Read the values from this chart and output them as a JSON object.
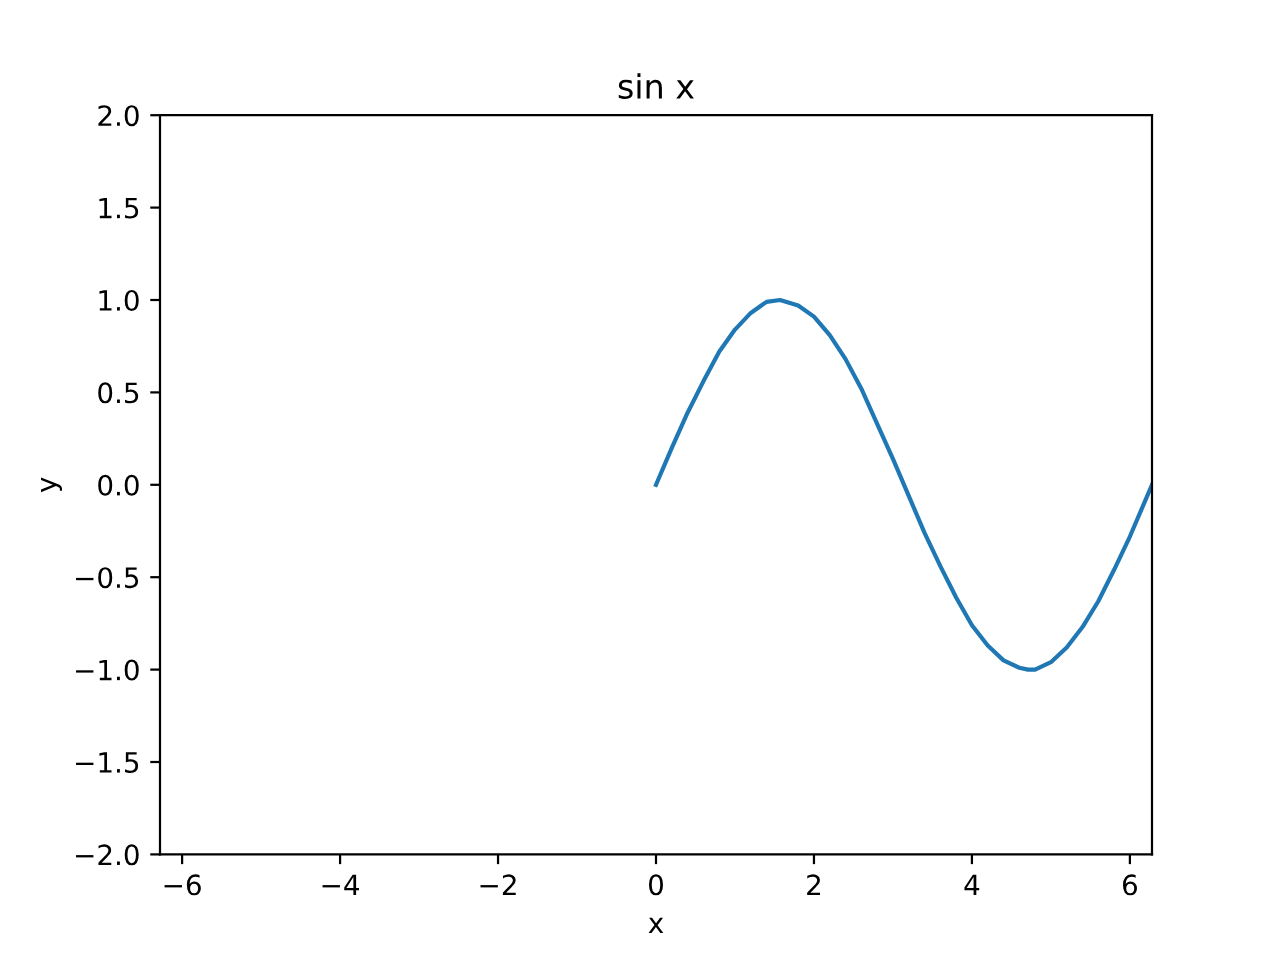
{
  "chart_data": {
    "type": "line",
    "title": "sin x",
    "xlabel": "x",
    "ylabel": "y",
    "x": [
      0,
      0.2,
      0.4,
      0.6,
      0.8,
      1.0,
      1.2,
      1.4,
      1.57,
      1.8,
      2.0,
      2.2,
      2.4,
      2.6,
      2.8,
      3.0,
      3.2,
      3.4,
      3.6,
      3.8,
      4.0,
      4.2,
      4.4,
      4.6,
      4.71,
      4.8,
      5.0,
      5.2,
      5.4,
      5.6,
      5.8,
      6.0,
      6.2,
      6.28
    ],
    "series": [
      {
        "color": "#1f77b4",
        "values": [
          0,
          0.2,
          0.39,
          0.56,
          0.72,
          0.84,
          0.93,
          0.99,
          1.0,
          0.97,
          0.91,
          0.81,
          0.68,
          0.52,
          0.33,
          0.14,
          -0.06,
          -0.26,
          -0.44,
          -0.61,
          -0.76,
          -0.87,
          -0.95,
          -0.99,
          -1.0,
          -1.0,
          -0.96,
          -0.88,
          -0.77,
          -0.63,
          -0.46,
          -0.28,
          -0.08,
          0
        ]
      }
    ],
    "xlim": [
      -6.28,
      6.28
    ],
    "xticks": [
      {
        "value": -6,
        "label": "−6"
      },
      {
        "value": -4,
        "label": "−4"
      },
      {
        "value": -2,
        "label": "−2"
      },
      0,
      2,
      4,
      6
    ],
    "ylim": [
      -2,
      2
    ],
    "yticks": [
      {
        "value": -2,
        "label": "−2.0"
      },
      {
        "value": -1.5,
        "label": "−1.5"
      },
      {
        "value": -1,
        "label": "−1.0"
      },
      {
        "value": -0.5,
        "label": "−0.5"
      },
      {
        "value": 0,
        "label": "0.0"
      },
      {
        "value": 0.5,
        "label": "0.5"
      },
      {
        "value": 1,
        "label": "1.0"
      },
      {
        "value": 1.5,
        "label": "1.5"
      },
      {
        "value": 2,
        "label": "2.0"
      }
    ],
    "grid": false,
    "legend": false
  }
}
